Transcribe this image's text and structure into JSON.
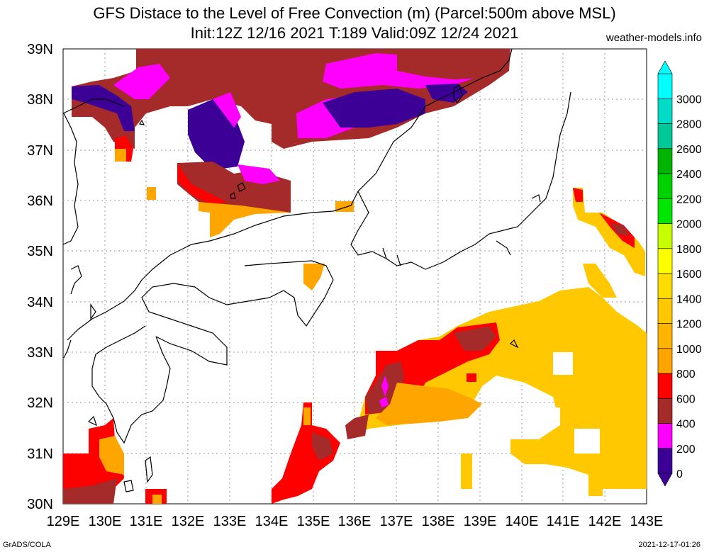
{
  "title_line1": "GFS Distace to the Level of Free Convection (m) (Parcel:500m above MSL)",
  "title_line2": "Init:12Z 12/16 2021 T:189 Valid:09Z 12/24 2021",
  "site": "weather-models.info",
  "footer_left": "GrADS/COLA",
  "footer_right": "2021-12-17-01:26",
  "map": {
    "lon_range": [
      129,
      143
    ],
    "lat_range": [
      30,
      39
    ],
    "lon_labels": [
      "129E",
      "130E",
      "131E",
      "132E",
      "133E",
      "134E",
      "135E",
      "136E",
      "137E",
      "138E",
      "139E",
      "140E",
      "141E",
      "142E",
      "143E"
    ],
    "lat_labels": [
      "30N",
      "31N",
      "32N",
      "33N",
      "34N",
      "35N",
      "36N",
      "37N",
      "38N",
      "39N"
    ]
  },
  "colorbar": {
    "labels": [
      "0",
      "200",
      "400",
      "600",
      "800",
      "1000",
      "1200",
      "1400",
      "1600",
      "1800",
      "2000",
      "2200",
      "2400",
      "2600",
      "2800",
      "3000"
    ],
    "colors": [
      "#3c0096",
      "#ff00ff",
      "#a52a2a",
      "#ff0000",
      "#ffa500",
      "#ffb400",
      "#ffc800",
      "#ffdc00",
      "#ffff00",
      "#c8ff00",
      "#00e600",
      "#00d200",
      "#00b400",
      "#00c896",
      "#00dcc8",
      "#00ffff"
    ]
  }
}
